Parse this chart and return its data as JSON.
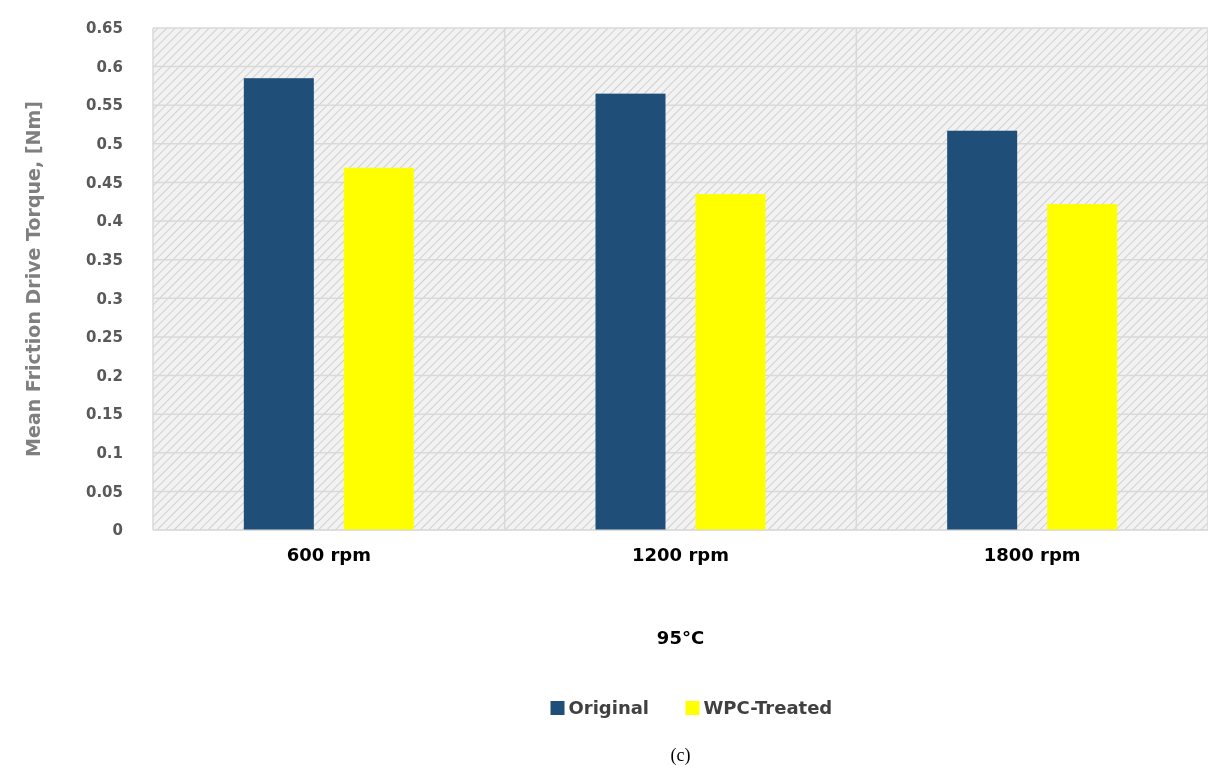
{
  "chart_data": {
    "type": "bar",
    "xlabel": "95°C",
    "ylabel": "Mean Friction Drive Torque, [Nm]",
    "categories": [
      "600 rpm",
      "1200 rpm",
      "1800 rpm"
    ],
    "series": [
      {
        "name": "Original",
        "color": "#1f4e79",
        "values": [
          0.585,
          0.565,
          0.517
        ]
      },
      {
        "name": "WPC-Treated",
        "color": "#ffff00",
        "values": [
          0.469,
          0.435,
          0.422
        ]
      }
    ],
    "ylim": [
      0,
      0.65
    ],
    "yticks": [
      0,
      0.05,
      0.1,
      0.15,
      0.2,
      0.25,
      0.3,
      0.35,
      0.4,
      0.45,
      0.5,
      0.55,
      0.6,
      0.65
    ],
    "grid": true,
    "legend": "bottom",
    "annotations": [
      "(c)"
    ]
  }
}
